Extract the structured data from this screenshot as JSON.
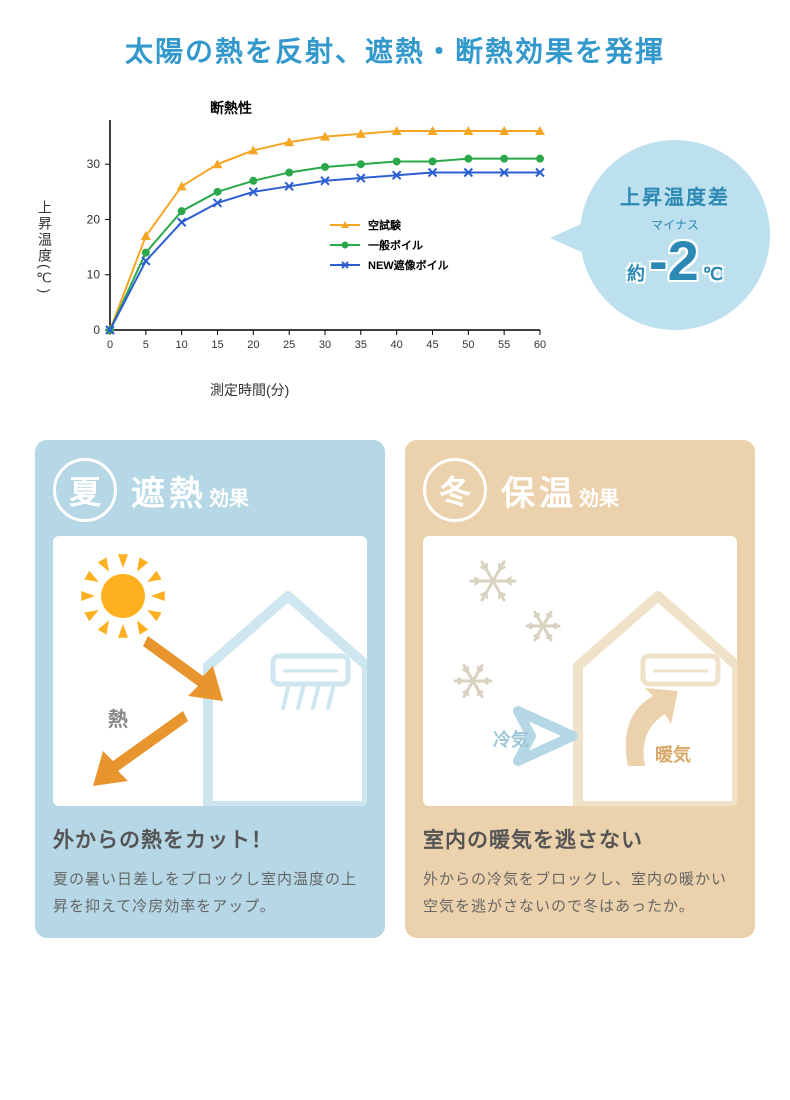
{
  "title": "太陽の熱を反射、遮熱・断熱効果を発揮",
  "title_color": "#3399cc",
  "chart": {
    "type": "line",
    "title": "断熱性",
    "y_label": "上昇温度(℃)",
    "x_label": "測定時間(分)",
    "xlim": [
      0,
      60
    ],
    "ylim": [
      0,
      38
    ],
    "xtick_step": 5,
    "ytick_step": 10,
    "grid_color": "#cccccc",
    "axis_color": "#000000",
    "background_color": "#ffffff",
    "x_values": [
      0,
      5,
      10,
      15,
      20,
      25,
      30,
      35,
      40,
      45,
      50,
      55,
      60
    ],
    "series": [
      {
        "name": "空試験",
        "values": [
          0,
          17,
          26,
          30,
          32.5,
          34,
          35,
          35.5,
          36,
          36,
          36,
          36,
          36
        ],
        "color": "#f5a623",
        "marker": "triangle",
        "line_width": 2
      },
      {
        "name": "一般ボイル",
        "values": [
          0,
          14,
          21.5,
          25,
          27,
          28.5,
          29.5,
          30,
          30.5,
          30.5,
          31,
          31,
          31
        ],
        "color": "#2ba84a",
        "marker": "circle",
        "line_width": 2
      },
      {
        "name": "NEW遮像ボイル",
        "values": [
          0,
          12.5,
          19.5,
          23,
          25,
          26,
          27,
          27.5,
          28,
          28.5,
          28.5,
          28.5,
          28.5
        ],
        "color": "#2d5fd3",
        "marker": "x",
        "line_width": 2
      }
    ]
  },
  "callout": {
    "title": "上昇温度差",
    "sub": "マイナス",
    "about": "約",
    "value": "-2",
    "unit": "℃",
    "bg_color": "#bde0ee",
    "text_color": "#2b89b4"
  },
  "cards": {
    "summer": {
      "badge": "夏",
      "title_big": "遮熱",
      "title_small": "効果",
      "bg_color": "#b5d7e6",
      "sub": "外からの熱をカット！",
      "desc": "夏の暑い日差しをブロックし室内温度の上昇を抑えて冷房効率をアップ。",
      "labels": {
        "heat": "熱"
      },
      "colors": {
        "sun": "#ffb020",
        "arrow": "#e8952d",
        "house": "#cde6ef",
        "ac": "#cde6ef"
      }
    },
    "winter": {
      "badge": "冬",
      "title_big": "保温",
      "title_small": "効果",
      "bg_color": "#ecd2ac",
      "sub": "室内の暖気を逃さない",
      "desc": "外からの冷気をブロックし、室内の暖かい空気を逃がさないので冬はあったか。",
      "labels": {
        "cold": "冷気",
        "warm": "暖気"
      },
      "colors": {
        "snow": "#d9d2c0",
        "arrow_cold": "#b5d7e6",
        "arrow_warm": "#ecd2ac",
        "house": "#efe2c8",
        "ac": "#efe2c8"
      }
    }
  }
}
